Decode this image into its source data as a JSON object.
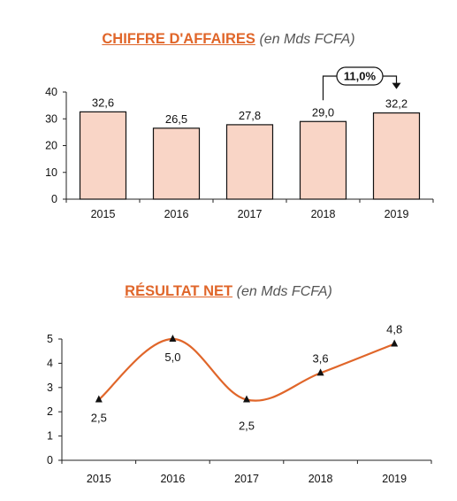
{
  "chart_data": [
    {
      "type": "bar",
      "title": "CHIFFRE D'AFFAIRES",
      "unit": "(en Mds FCFA)",
      "categories": [
        "2015",
        "2016",
        "2017",
        "2018",
        "2019"
      ],
      "values": [
        32.6,
        26.5,
        27.8,
        29.0,
        32.2
      ],
      "value_labels": [
        "32,6",
        "26,5",
        "27,8",
        "29,0",
        "32,2"
      ],
      "ylim": [
        0,
        40
      ],
      "yticks": [
        0,
        10,
        20,
        30,
        40
      ],
      "bar_color": "#f9d5c6",
      "annotation": {
        "label": "11,0%",
        "from_category": "2018",
        "to_category": "2019"
      }
    },
    {
      "type": "line",
      "title": "RÉSULTAT NET",
      "unit": "(en Mds FCFA)",
      "categories": [
        "2015",
        "2016",
        "2017",
        "2018",
        "2019"
      ],
      "values": [
        2.5,
        5.0,
        2.5,
        3.6,
        4.8
      ],
      "value_labels": [
        "2,5",
        "5,0",
        "2,5",
        "3,6",
        "4,8"
      ],
      "ylim": [
        0,
        5
      ],
      "yticks": [
        0,
        1,
        2,
        3,
        4,
        5
      ],
      "line_color": "#e0662a",
      "smooth": true
    }
  ]
}
